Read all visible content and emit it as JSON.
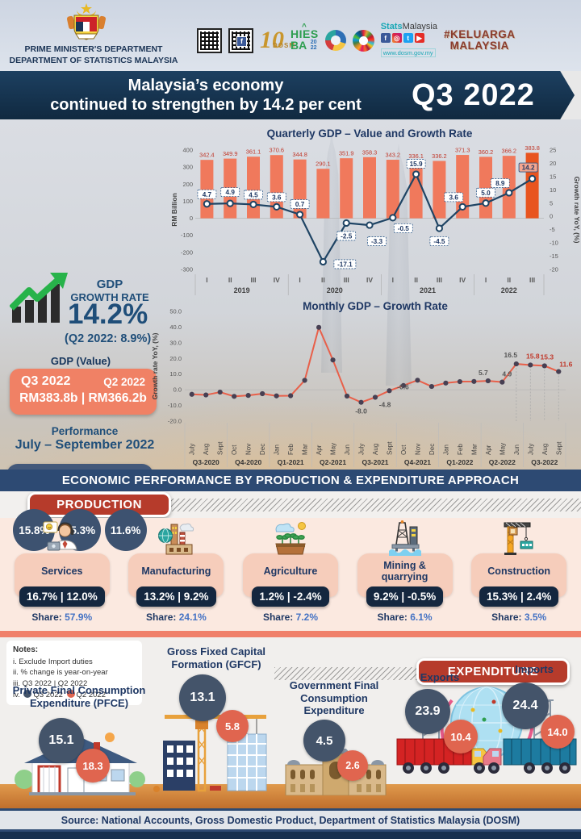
{
  "header": {
    "dept_line1": "PRIME MINISTER'S DEPARTMENT",
    "dept_line2": "DEPARTMENT OF STATISTICS MALAYSIA",
    "anniversary": "10",
    "anniversary_sub": "DOSM",
    "hies_line1": "HIES",
    "hies_line2": "BA",
    "hies_year_top": "20",
    "hies_year_bottom": "22",
    "stats_brand_bold": "Stats",
    "stats_brand_rest": "Malaysia",
    "website": "www.dosm.gov.my",
    "keluarga_line1": "#KELUARGA",
    "keluarga_line2": "MALAYSIA"
  },
  "title_banner": {
    "line1": "Malaysia’s economy",
    "line2": "continued to strengthen by 14.2 per cent",
    "quarter": "Q3 2022"
  },
  "gdp_panel": {
    "label_line1": "GDP",
    "label_line2": "GROWTH RATE",
    "rate": "14.2%",
    "previous": "(Q2 2022: 8.9%)",
    "value_title": "GDP (Value)",
    "value_q3_label": "Q3 2022",
    "value_q2_label": "Q2 2022",
    "value_amounts": "RM383.8b | RM366.2b"
  },
  "performance": {
    "title_line1": "Performance",
    "title_line2": "July – September 2022",
    "months": [
      "July",
      "Aug.",
      "Sept."
    ],
    "values": [
      "15.8%",
      "15.3%",
      "11.6%"
    ]
  },
  "section_banner": {
    "title": "ECONOMIC PERFORMANCE BY PRODUCTION & EXPENDITURE APPROACH"
  },
  "production": {
    "label": "PRODUCTION",
    "share_label": "Share:",
    "sectors": [
      {
        "name": "Services",
        "change": "16.7% | 12.0%",
        "share": "57.9%"
      },
      {
        "name": "Manufacturing",
        "change": "13.2% | 9.2%",
        "share": "24.1%"
      },
      {
        "name": "Agriculture",
        "change": "1.2% | -2.4%",
        "share": "7.2%"
      },
      {
        "name": "Mining & quarrying",
        "change": "9.2% | -0.5%",
        "share": "6.1%"
      },
      {
        "name": "Construction",
        "change": "15.3% | 2.4%",
        "share": "3.5%"
      }
    ]
  },
  "notes": {
    "title": "Notes:",
    "item1": "i. Exclude Import duties",
    "item2": "ii. % change is year-on-year",
    "item3": "iii. Q3 2022 | Q2 2022",
    "item4_prefix": "iv.",
    "legend_q3": "Q3 2022",
    "legend_q2": "Q2 2022"
  },
  "expenditure": {
    "label": "EXPENDITURE",
    "pfce": {
      "name": "Private Final Consumption Expenditure (PFCE)",
      "q3": "15.1",
      "q2": "18.3"
    },
    "gfcf": {
      "name": "Gross Fixed Capital Formation (GFCF)",
      "q3": "13.1",
      "q2": "5.8"
    },
    "gov": {
      "name": "Government Final Consumption Expenditure",
      "q3": "4.5",
      "q2": "2.6"
    },
    "exports": {
      "name": "Exports",
      "q3": "23.9",
      "q2": "10.4"
    },
    "imports": {
      "name": "Imports",
      "q3": "24.4",
      "q2": "14.0"
    }
  },
  "footer": {
    "source": "Source: National Accounts, Gross Domestic Product, Department of Statistics Malaysia (DOSM)"
  },
  "colors": {
    "navy": "#1f3f66",
    "navy_dark": "#16304f",
    "banner_navy": "#2d4a73",
    "salmon": "#f08165",
    "bar": "#f0795c",
    "bar_highlight": "#e8541f",
    "line_navy": "#1f4464",
    "coral": "#e8604a",
    "brick": "#b63b2b",
    "circle_navy": "#44546a",
    "circle_orange": "#e0654f",
    "share_blue": "#4472c4"
  },
  "chart_data": [
    {
      "type": "bar",
      "title": "Quarterly GDP – Value and Growth Rate",
      "categories": [
        "I",
        "II",
        "III",
        "IV",
        "I",
        "II",
        "III",
        "IV",
        "I",
        "II",
        "III",
        "IV",
        "I",
        "II",
        "III"
      ],
      "year_groups": [
        [
          "2019",
          4
        ],
        [
          "2020",
          4
        ],
        [
          "2021",
          4
        ],
        [
          "2022",
          3
        ]
      ],
      "series": [
        {
          "name": "GDP Value (RM Billion)",
          "type": "bar",
          "values": [
            342.4,
            349.9,
            361.1,
            370.6,
            344.8,
            290.1,
            351.9,
            358.3,
            343.2,
            336.1,
            336.2,
            371.3,
            360.2,
            366.2,
            383.8
          ]
        },
        {
          "name": "Growth rate YoY (%)",
          "type": "line",
          "values": [
            4.7,
            4.9,
            4.5,
            3.6,
            0.7,
            -17.1,
            -2.5,
            -3.3,
            -0.5,
            15.9,
            -4.5,
            3.6,
            5.0,
            8.9,
            14.2
          ]
        }
      ],
      "axis_left_label": "RM Billion",
      "axis_right_label": "Growth rate YoY, (%)",
      "yticks_left": [
        400,
        300,
        200,
        100,
        0,
        -100,
        -200,
        -300
      ],
      "yticks_right": [
        25,
        20,
        15,
        10,
        5,
        0,
        -5,
        -10,
        -15,
        -20
      ],
      "ylim_left": [
        -300,
        400
      ],
      "ylim_right": [
        -20,
        25
      ],
      "highlight_index": 14
    },
    {
      "type": "line",
      "title": "Monthly GDP – Growth Rate",
      "x": [
        "July",
        "Aug",
        "Sept",
        "Oct",
        "Nov",
        "Dec",
        "Jan",
        "Feb",
        "Mar",
        "Apr",
        "May",
        "Jun",
        "July",
        "Aug",
        "Sept",
        "Oct",
        "Nov",
        "Dec",
        "Jan",
        "Feb",
        "Mar",
        "Apr",
        "May",
        "Jun",
        "July",
        "Aug",
        "Sept"
      ],
      "quarter_groups": [
        [
          "Q3-2020",
          3
        ],
        [
          "Q4-2020",
          3
        ],
        [
          "Q1-2021",
          3
        ],
        [
          "Q2-2021",
          3
        ],
        [
          "Q3-2021",
          3
        ],
        [
          "Q4-2021",
          3
        ],
        [
          "Q1-2022",
          3
        ],
        [
          "Q2-2022",
          3
        ],
        [
          "Q3-2022",
          3
        ]
      ],
      "values": [
        -2.9,
        -3.3,
        -1.5,
        -4.2,
        -3.6,
        -2.5,
        -3.9,
        -3.8,
        6.0,
        39.8,
        19.0,
        -4.0,
        -8.0,
        -4.8,
        -0.6,
        2.7,
        6.1,
        2.1,
        4.3,
        5.2,
        5.3,
        5.7,
        4.9,
        16.5,
        15.8,
        15.3,
        11.6
      ],
      "point_labels": [
        {
          "i": 12,
          "t": "-8.0",
          "c": "dark"
        },
        {
          "i": 13,
          "t": "-4.8",
          "c": "dark"
        },
        {
          "i": 14,
          "t": "-0.6",
          "c": "dark"
        },
        {
          "i": 21,
          "t": "5.7",
          "c": "dark"
        },
        {
          "i": 22,
          "t": "4.9",
          "c": "dark"
        },
        {
          "i": 23,
          "t": "16.5",
          "c": "dark"
        },
        {
          "i": 24,
          "t": "15.8",
          "c": "red"
        },
        {
          "i": 25,
          "t": "15.3",
          "c": "red"
        },
        {
          "i": 26,
          "t": "11.6",
          "c": "red"
        }
      ],
      "axis_left_label": "Growth rate YoY, (%)",
      "yticks": [
        50.0,
        40.0,
        30.0,
        20.0,
        10.0,
        0.0,
        -10.0,
        -20.0
      ],
      "ylim": [
        -20,
        50
      ]
    }
  ]
}
